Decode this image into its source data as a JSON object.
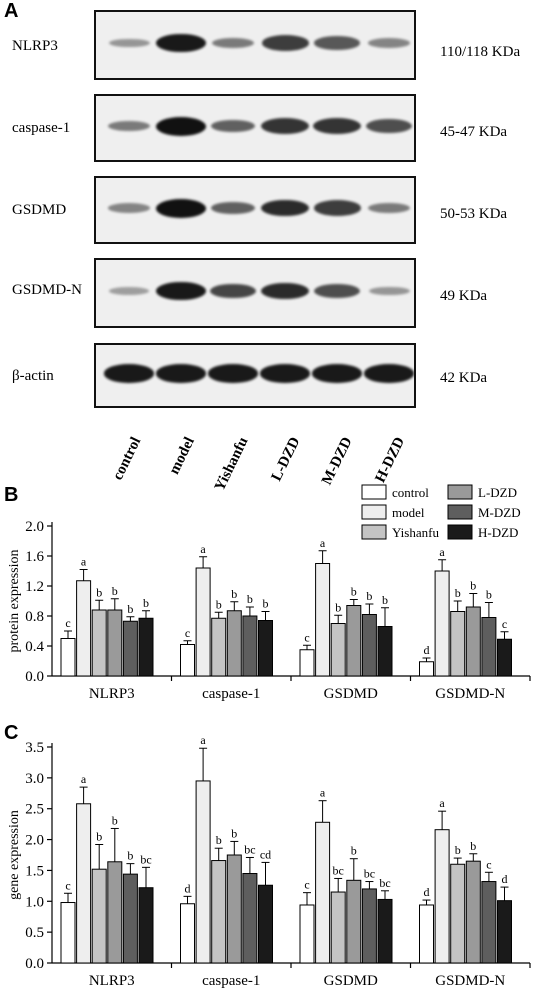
{
  "panel_a": {
    "letter": "A",
    "rows": [
      {
        "label": "NLRP3",
        "mw": "110/118 KDa",
        "intensity": [
          0.25,
          0.95,
          0.4,
          0.75,
          0.6,
          0.35
        ]
      },
      {
        "label": "caspase-1",
        "mw": "45-47 KDa",
        "intensity": [
          0.4,
          1.0,
          0.55,
          0.8,
          0.8,
          0.65
        ]
      },
      {
        "label": "GSDMD",
        "mw": "50-53 KDa",
        "intensity": [
          0.35,
          1.0,
          0.55,
          0.85,
          0.75,
          0.4
        ]
      },
      {
        "label": "GSDMD-N",
        "mw": "49 KDa",
        "intensity": [
          0.2,
          0.95,
          0.7,
          0.85,
          0.65,
          0.25
        ]
      },
      {
        "label": "β-actin",
        "mw": "42 KDa",
        "intensity": [
          0.95,
          0.95,
          0.95,
          0.95,
          0.95,
          0.95
        ]
      }
    ],
    "lanes": [
      "control",
      "model",
      "Yishanfu",
      "L-DZD",
      "M-DZD",
      "H-DZD"
    ]
  },
  "colors": {
    "control": "#ffffff",
    "model": "#eeeeee",
    "Yishanfu": "#c4c4c4",
    "L-DZD": "#9a9a9a",
    "M-DZD": "#5e5e5e",
    "H-DZD": "#1a1a1a"
  },
  "chart_data": [
    {
      "panel": "B",
      "type": "bar",
      "ylabel": "protein expression",
      "ylim": [
        0.0,
        2.0
      ],
      "yticks": [
        "0.0",
        "0.4",
        "0.8",
        "1.2",
        "1.6",
        "2.0"
      ],
      "categories": [
        "NLRP3",
        "caspase-1",
        "GSDMD",
        "GSDMD-N"
      ],
      "legend": [
        "control",
        "model",
        "Yishanfu",
        "L-DZD",
        "M-DZD",
        "H-DZD"
      ],
      "series": [
        {
          "name": "control",
          "values": [
            0.5,
            0.42,
            0.35,
            0.19
          ],
          "errors": [
            0.1,
            0.05,
            0.06,
            0.05
          ],
          "letters": [
            "c",
            "c",
            "c",
            "d"
          ]
        },
        {
          "name": "model",
          "values": [
            1.27,
            1.44,
            1.5,
            1.4
          ],
          "errors": [
            0.15,
            0.15,
            0.17,
            0.15
          ],
          "letters": [
            "a",
            "a",
            "a",
            "a"
          ]
        },
        {
          "name": "Yishanfu",
          "values": [
            0.88,
            0.77,
            0.7,
            0.86
          ],
          "errors": [
            0.13,
            0.08,
            0.11,
            0.14
          ],
          "letters": [
            "b",
            "b",
            "b",
            "b"
          ]
        },
        {
          "name": "L-DZD",
          "values": [
            0.88,
            0.87,
            0.94,
            0.92
          ],
          "errors": [
            0.15,
            0.12,
            0.08,
            0.18
          ],
          "letters": [
            "b",
            "b",
            "b",
            "b"
          ]
        },
        {
          "name": "M-DZD",
          "values": [
            0.73,
            0.8,
            0.82,
            0.78
          ],
          "errors": [
            0.06,
            0.12,
            0.14,
            0.2
          ],
          "letters": [
            "b",
            "b",
            "b",
            "b"
          ]
        },
        {
          "name": "H-DZD",
          "values": [
            0.77,
            0.74,
            0.66,
            0.49
          ],
          "errors": [
            0.1,
            0.12,
            0.25,
            0.1
          ],
          "letters": [
            "b",
            "b",
            "b",
            "c"
          ]
        }
      ]
    },
    {
      "panel": "C",
      "type": "bar",
      "ylabel": "gene expression",
      "ylim": [
        0.0,
        3.5
      ],
      "yticks": [
        "0.0",
        "0.5",
        "1.0",
        "1.5",
        "2.0",
        "2.5",
        "3.0",
        "3.5"
      ],
      "categories": [
        "NLRP3",
        "caspase-1",
        "GSDMD",
        "GSDMD-N"
      ],
      "series": [
        {
          "name": "control",
          "values": [
            0.98,
            0.96,
            0.94,
            0.94
          ],
          "errors": [
            0.15,
            0.12,
            0.2,
            0.08
          ],
          "letters": [
            "c",
            "d",
            "c",
            "d"
          ]
        },
        {
          "name": "model",
          "values": [
            2.58,
            2.95,
            2.28,
            2.16
          ],
          "errors": [
            0.27,
            0.53,
            0.35,
            0.3
          ],
          "letters": [
            "a",
            "a",
            "a",
            "a"
          ]
        },
        {
          "name": "Yishanfu",
          "values": [
            1.52,
            1.66,
            1.15,
            1.6
          ],
          "errors": [
            0.4,
            0.2,
            0.22,
            0.1
          ],
          "letters": [
            "b",
            "b",
            "bc",
            "b"
          ]
        },
        {
          "name": "L-DZD",
          "values": [
            1.64,
            1.75,
            1.34,
            1.65
          ],
          "errors": [
            0.54,
            0.22,
            0.35,
            0.12
          ],
          "letters": [
            "b",
            "b",
            "b",
            "b"
          ]
        },
        {
          "name": "M-DZD",
          "values": [
            1.44,
            1.45,
            1.2,
            1.32
          ],
          "errors": [
            0.17,
            0.26,
            0.12,
            0.15
          ],
          "letters": [
            "b",
            "bc",
            "bc",
            "c"
          ]
        },
        {
          "name": "H-DZD",
          "values": [
            1.22,
            1.26,
            1.03,
            1.01
          ],
          "errors": [
            0.33,
            0.37,
            0.14,
            0.22
          ],
          "letters": [
            "bc",
            "cd",
            "bc",
            "d"
          ]
        }
      ]
    }
  ],
  "panel_letters": {
    "b": "B",
    "c": "C"
  }
}
